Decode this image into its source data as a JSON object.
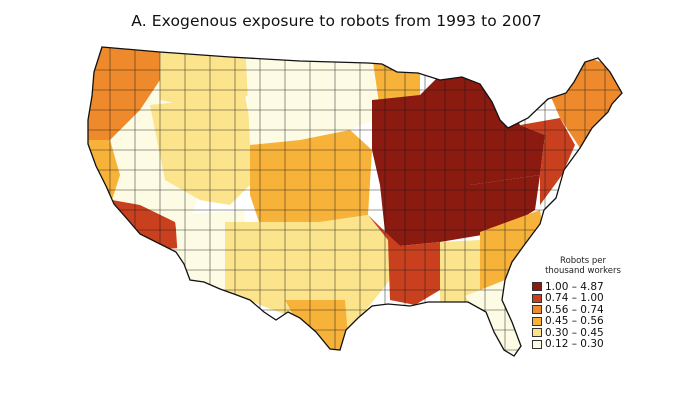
{
  "title": "A. Exogenous exposure to robots from 1993 to 2007",
  "legend": {
    "title_line1": "Robots per",
    "title_line2": "thousand workers",
    "items": [
      {
        "label": "1.00 – 4.87",
        "color": "#8b1a10"
      },
      {
        "label": "0.74 – 1.00",
        "color": "#c9401f"
      },
      {
        "label": "0.56 – 0.74",
        "color": "#ee8a2b"
      },
      {
        "label": "0.45 – 0.56",
        "color": "#f7b23a"
      },
      {
        "label": "0.30 – 0.45",
        "color": "#fbe48c"
      },
      {
        "label": "0.12 – 0.30",
        "color": "#fdfbe4"
      }
    ]
  },
  "regions": [
    {
      "name": "pacific-northwest",
      "level": 2
    },
    {
      "name": "northern-california-coast",
      "level": 3
    },
    {
      "name": "nevada-great-basin",
      "level": 5
    },
    {
      "name": "southern-california",
      "level": 1
    },
    {
      "name": "arizona",
      "level": 5
    },
    {
      "name": "northern-rockies",
      "level": 4
    },
    {
      "name": "idaho-utah",
      "level": 4
    },
    {
      "name": "great-plains",
      "level": 5
    },
    {
      "name": "colorado-kansas",
      "level": 3
    },
    {
      "name": "texas-oklahoma",
      "level": 4
    },
    {
      "name": "south-texas",
      "level": 3
    },
    {
      "name": "minnesota-north",
      "level": 3
    },
    {
      "name": "upper-midwest",
      "level": 0
    },
    {
      "name": "lower-midwest",
      "level": 0
    },
    {
      "name": "south-central",
      "level": 1
    },
    {
      "name": "gulf-coast",
      "level": 4
    },
    {
      "name": "southeast",
      "level": 3
    },
    {
      "name": "florida",
      "level": 5
    },
    {
      "name": "mid-atlantic",
      "level": 1
    },
    {
      "name": "new-england",
      "level": 2
    }
  ]
}
